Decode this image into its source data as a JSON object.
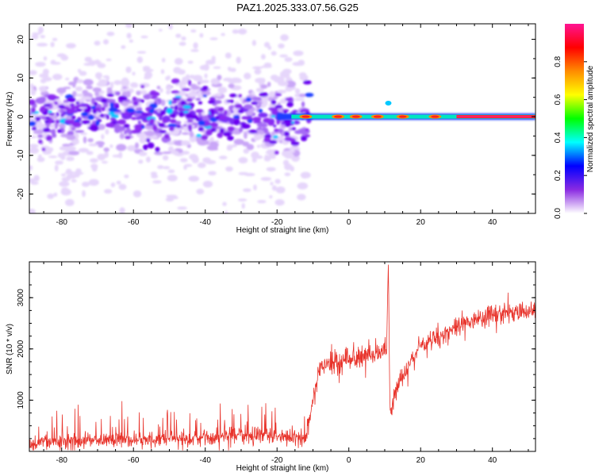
{
  "figure": {
    "title": "PAZ1.2025.333.07.56.G25"
  },
  "chart_data": [
    {
      "type": "heatmap",
      "xlabel": "Height of straight line (km)",
      "ylabel": "Frequency (Hz)",
      "xlim": [
        -89,
        52
      ],
      "ylim": [
        -25,
        24
      ],
      "x_ticks": [
        -80,
        -60,
        -40,
        -20,
        0,
        20,
        40
      ],
      "y_ticks": [
        -20,
        -10,
        0,
        10,
        20
      ],
      "grid": false,
      "colorbar": {
        "label": "Normalized spectral amplitude",
        "range": [
          0,
          1
        ],
        "ticks": [
          0.0,
          0.2,
          0.4,
          0.6,
          0.8
        ],
        "colors": [
          "#ffffff",
          "#8a2be2",
          "#0000ff",
          "#00ffff",
          "#00ff00",
          "#ffff00",
          "#ff8c00",
          "#ff0000",
          "#ff1493"
        ]
      },
      "description_of_content": {
        "ridge_start_km": -20,
        "ridge_frequency_hz": 0,
        "noise_region_km": [
          -89,
          -15
        ]
      }
    },
    {
      "type": "line",
      "xlabel": "Height of straight line (km)",
      "ylabel": "SNR (10 * v/v)",
      "xlim": [
        -89,
        52
      ],
      "ylim": [
        0,
        3700
      ],
      "x_ticks": [
        -80,
        -60,
        -40,
        -20,
        0,
        20,
        40
      ],
      "y_ticks": [
        1000,
        2000,
        3000
      ],
      "grid": false,
      "series": [
        {
          "color": "#e8332b",
          "trend_points": [
            {
              "x": -89,
              "y": 180
            },
            {
              "x": -60,
              "y": 220
            },
            {
              "x": -40,
              "y": 260
            },
            {
              "x": -25,
              "y": 330
            },
            {
              "x": -12,
              "y": 250
            },
            {
              "x": -10,
              "y": 1000
            },
            {
              "x": -8,
              "y": 1650
            },
            {
              "x": 0,
              "y": 1800
            },
            {
              "x": 8,
              "y": 1900
            },
            {
              "x": 10.5,
              "y": 2000
            },
            {
              "x": 11,
              "y": 3700
            },
            {
              "x": 11.5,
              "y": 700
            },
            {
              "x": 13,
              "y": 1200
            },
            {
              "x": 20,
              "y": 2050
            },
            {
              "x": 30,
              "y": 2450
            },
            {
              "x": 40,
              "y": 2680
            },
            {
              "x": 52,
              "y": 2750
            }
          ]
        }
      ]
    }
  ]
}
